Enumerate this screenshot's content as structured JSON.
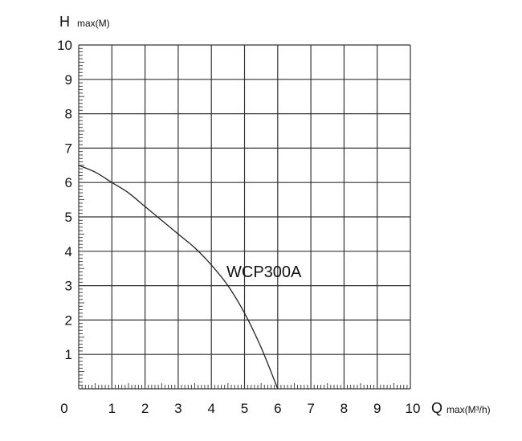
{
  "chart_data": {
    "type": "line",
    "title": "",
    "ylabel": "H",
    "ylabel_unit": "max(M)",
    "xlabel": "Q",
    "xlabel_unit": "max(M³/h)",
    "xlim": [
      0,
      10
    ],
    "ylim": [
      0,
      10
    ],
    "x_ticks": [
      "0",
      "1",
      "2",
      "3",
      "4",
      "5",
      "6",
      "7",
      "8",
      "9",
      "10"
    ],
    "y_ticks": [
      "1",
      "2",
      "3",
      "4",
      "5",
      "6",
      "7",
      "8",
      "9",
      "10"
    ],
    "grid": true,
    "series": [
      {
        "name": "WCP300A",
        "x": [
          0,
          0.5,
          1,
          1.5,
          2,
          2.5,
          3,
          3.5,
          4,
          4.5,
          5,
          5.5,
          6
        ],
        "y": [
          6.5,
          6.3,
          6.0,
          5.7,
          5.3,
          4.9,
          4.5,
          4.1,
          3.6,
          3.0,
          2.2,
          1.2,
          0
        ]
      }
    ],
    "line_color": "#222222",
    "grid_color": "#333333"
  }
}
